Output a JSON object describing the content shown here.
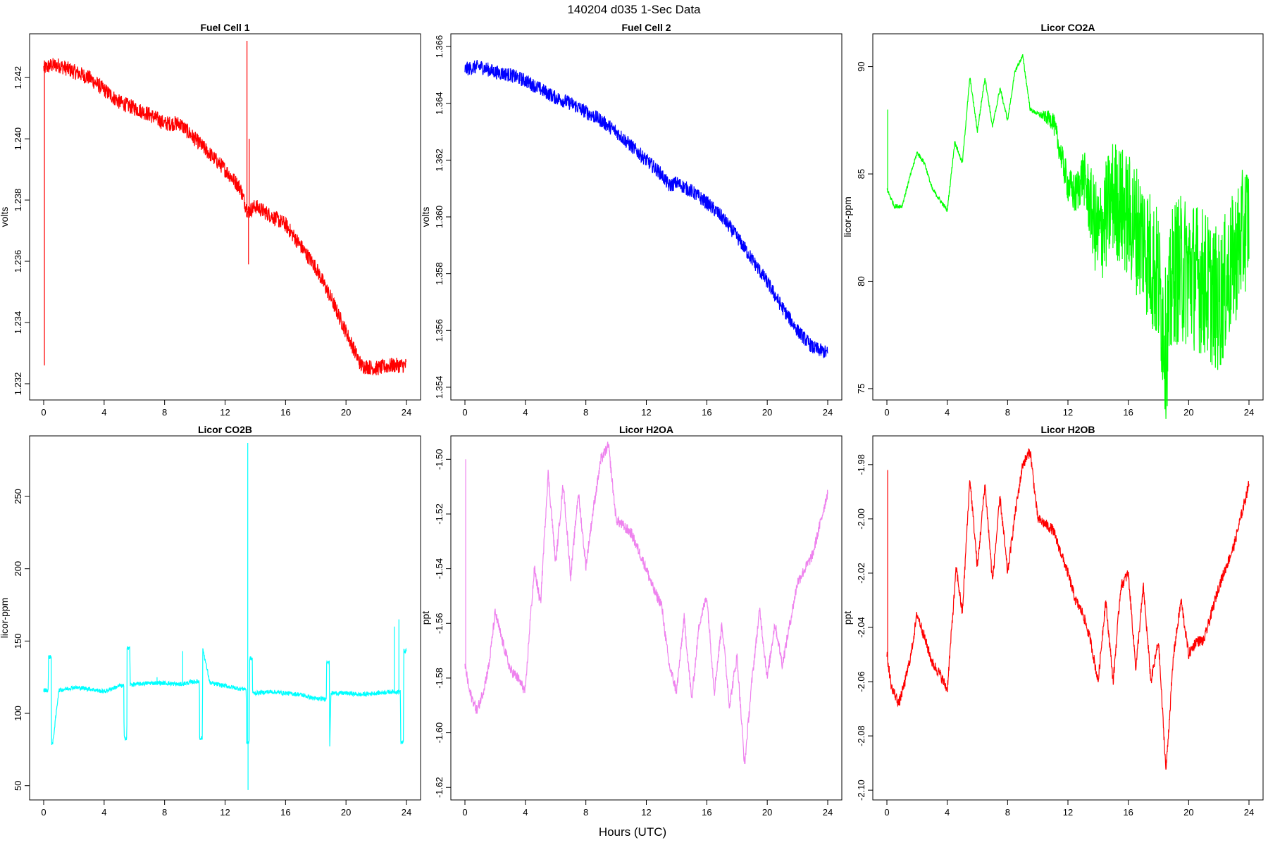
{
  "figure": {
    "title": "140204    d035    1-Sec Data",
    "xlabel": "Hours (UTC)"
  },
  "chart_data": [
    {
      "type": "line",
      "title": "Fuel Cell 1",
      "ylabel": "volts",
      "color": "#ff0000",
      "xlim": [
        0,
        24
      ],
      "ylim": [
        1.2317,
        1.2432
      ],
      "xticks": [
        0,
        4,
        8,
        12,
        16,
        20,
        24
      ],
      "yticks": [
        1.232,
        1.234,
        1.236,
        1.238,
        1.24,
        1.242
      ],
      "ytick_labels": [
        "1.232",
        "1.234",
        "1.236",
        "1.238",
        "1.240",
        "1.242"
      ],
      "noise": 0.00025,
      "x": [
        0,
        0.5,
        1,
        2,
        3,
        4,
        5,
        6,
        7,
        8,
        9,
        10,
        11,
        12,
        13,
        13.5,
        14,
        15,
        16,
        17,
        18,
        19,
        20,
        21,
        22,
        23,
        24
      ],
      "y": [
        1.2423,
        1.2424,
        1.2424,
        1.2422,
        1.242,
        1.2416,
        1.2412,
        1.241,
        1.2408,
        1.2405,
        1.2405,
        1.24,
        1.2395,
        1.239,
        1.2384,
        1.2376,
        1.2378,
        1.2375,
        1.2372,
        1.2365,
        1.2358,
        1.2348,
        1.2337,
        1.2326,
        1.2325,
        1.2326,
        1.2326
      ],
      "spikes": [
        [
          0.05,
          1.2326
        ],
        [
          13.45,
          1.2432
        ],
        [
          13.55,
          1.2359
        ],
        [
          13.6,
          1.24
        ]
      ]
    },
    {
      "type": "line",
      "title": "Fuel Cell 2",
      "ylabel": "volts",
      "color": "#0000ff",
      "xlim": [
        0,
        24
      ],
      "ylim": [
        1.3538,
        1.3662
      ],
      "xticks": [
        0,
        4,
        8,
        12,
        16,
        20,
        24
      ],
      "yticks": [
        1.354,
        1.356,
        1.358,
        1.36,
        1.362,
        1.364,
        1.366
      ],
      "ytick_labels": [
        "1.354",
        "1.356",
        "1.358",
        "1.360",
        "1.362",
        "1.364",
        "1.366"
      ],
      "noise": 0.00025,
      "x": [
        0,
        1,
        2,
        3,
        4,
        5,
        6,
        7,
        8,
        9,
        10,
        11,
        12,
        13,
        13.5,
        14,
        15,
        16,
        17,
        18,
        19,
        20,
        21,
        22,
        23,
        24
      ],
      "y": [
        1.3652,
        1.3653,
        1.3651,
        1.365,
        1.3648,
        1.3645,
        1.3642,
        1.364,
        1.3637,
        1.3634,
        1.363,
        1.3625,
        1.362,
        1.3615,
        1.3611,
        1.3612,
        1.3609,
        1.3605,
        1.36,
        1.3593,
        1.3585,
        1.3577,
        1.3568,
        1.356,
        1.3554,
        1.3552
      ]
    },
    {
      "type": "line",
      "title": "Licor CO2A",
      "ylabel": "licor-ppm",
      "color": "#00ff00",
      "xlim": [
        0,
        24
      ],
      "ylim": [
        74.8,
        91.2
      ],
      "xticks": [
        0,
        4,
        8,
        12,
        16,
        20,
        24
      ],
      "yticks": [
        75,
        80,
        85,
        90
      ],
      "ytick_labels": [
        "75",
        "80",
        "85",
        "90"
      ],
      "x": [
        0,
        0.5,
        1,
        1.5,
        2,
        2.5,
        3,
        3.5,
        4,
        4.5,
        5,
        5.5,
        6,
        6.5,
        7,
        7.5,
        8,
        8.5,
        9,
        9.5,
        10,
        11,
        12,
        12.5,
        13,
        14,
        15,
        16,
        17,
        18,
        18.5,
        19,
        20,
        21,
        22,
        23,
        24
      ],
      "y": [
        84.3,
        83.5,
        83.5,
        84.8,
        86.0,
        85.5,
        84.3,
        83.8,
        83.3,
        86.5,
        85.5,
        89.5,
        87.0,
        89.5,
        87.2,
        89.0,
        87.5,
        89.8,
        90.5,
        88.0,
        87.8,
        87.5,
        84.5,
        84.0,
        85.0,
        82.0,
        84.0,
        83.0,
        82.0,
        80.0,
        77.0,
        80.5,
        80.5,
        80.0,
        79.0,
        81.0,
        83.0
      ],
      "env_x": [
        0,
        10,
        13,
        14,
        16,
        18,
        20,
        22,
        24
      ],
      "env_w": [
        0.1,
        0.1,
        1.2,
        2.5,
        3.0,
        3.4,
        3.6,
        3.4,
        3.0
      ],
      "spikes": [
        [
          0.05,
          88.0
        ]
      ]
    },
    {
      "type": "line",
      "title": "Licor CO2B",
      "ylabel": "licor-ppm",
      "color": "#00ffff",
      "xlim": [
        0,
        24
      ],
      "ylim": [
        45,
        287
      ],
      "xticks": [
        0,
        4,
        8,
        12,
        16,
        20,
        24
      ],
      "yticks": [
        50,
        100,
        150,
        200,
        250
      ],
      "ytick_labels": [
        "50",
        "100",
        "150",
        "200",
        "250"
      ],
      "x": [
        0,
        0.3,
        0.32,
        0.5,
        0.52,
        0.6,
        1,
        2,
        3,
        4,
        5,
        5.3,
        5.32,
        5.5,
        5.52,
        5.7,
        5.72,
        6,
        7,
        8,
        9,
        10,
        10.3,
        10.32,
        10.5,
        10.52,
        11,
        12,
        13,
        13.4,
        13.42,
        13.6,
        13.62,
        13.8,
        13.82,
        14,
        15,
        16,
        17,
        18,
        18.7,
        18.72,
        18.9,
        18.92,
        19,
        20,
        21,
        22,
        23,
        23.6,
        23.62,
        23.8,
        23.82,
        24
      ],
      "y": [
        116,
        116,
        139,
        139,
        79,
        79,
        116,
        118,
        117,
        115,
        119,
        119,
        83,
        83,
        145,
        145,
        120,
        120,
        121,
        121,
        120,
        122,
        122,
        83,
        83,
        145,
        121,
        119,
        117,
        117,
        80,
        80,
        138,
        138,
        114,
        114,
        115,
        114,
        113,
        110,
        110,
        136,
        136,
        75,
        114,
        114,
        113,
        114,
        115,
        115,
        80,
        80,
        143,
        143
      ],
      "noise": 1.5,
      "spikes": [
        [
          13.5,
          287
        ],
        [
          13.52,
          47
        ],
        [
          23.2,
          160
        ],
        [
          23.5,
          165
        ],
        [
          9.2,
          143
        ],
        [
          7.5,
          125
        ]
      ]
    },
    {
      "type": "line",
      "title": "Licor H2OA",
      "ylabel": "ppt",
      "color": "#ee82ee",
      "xlim": [
        0,
        24
      ],
      "ylim": [
        -1.622,
        -1.494
      ],
      "xticks": [
        0,
        4,
        8,
        12,
        16,
        20,
        24
      ],
      "yticks": [
        -1.62,
        -1.6,
        -1.58,
        -1.56,
        -1.54,
        -1.52,
        -1.5
      ],
      "ytick_labels": [
        "-1.62",
        "-1.60",
        "-1.58",
        "-1.56",
        "-1.54",
        "-1.52",
        "-1.50"
      ],
      "x": [
        0,
        0.3,
        0.8,
        1.2,
        1.6,
        2,
        2.4,
        3,
        3.5,
        4,
        4.3,
        4.6,
        5,
        5.5,
        6,
        6.5,
        7,
        7.5,
        8,
        8.5,
        9,
        9.5,
        10,
        11,
        12,
        12.5,
        13,
        13.5,
        14,
        14.5,
        15,
        15.5,
        16,
        16.5,
        17,
        17.5,
        18,
        18.5,
        19,
        19.5,
        20,
        20.5,
        21,
        22,
        23,
        24
      ],
      "y": [
        -1.575,
        -1.585,
        -1.592,
        -1.585,
        -1.575,
        -1.556,
        -1.565,
        -1.577,
        -1.58,
        -1.585,
        -1.56,
        -1.54,
        -1.553,
        -1.505,
        -1.538,
        -1.509,
        -1.543,
        -1.512,
        -1.539,
        -1.518,
        -1.5,
        -1.495,
        -1.522,
        -1.527,
        -1.54,
        -1.548,
        -1.553,
        -1.575,
        -1.585,
        -1.558,
        -1.588,
        -1.56,
        -1.55,
        -1.585,
        -1.56,
        -1.59,
        -1.572,
        -1.612,
        -1.58,
        -1.555,
        -1.58,
        -1.56,
        -1.575,
        -1.545,
        -1.535,
        -1.512
      ],
      "noise": 0.002,
      "spikes": [
        [
          0.05,
          -1.5
        ]
      ]
    },
    {
      "type": "line",
      "title": "Licor H2OB",
      "ylabel": "ppt",
      "color": "#ff0000",
      "xlim": [
        0,
        24
      ],
      "ylim": [
        -2.101,
        -1.972
      ],
      "xticks": [
        0,
        4,
        8,
        12,
        16,
        20,
        24
      ],
      "yticks": [
        -2.1,
        -2.08,
        -2.06,
        -2.04,
        -2.02,
        -2,
        -1.98
      ],
      "ytick_labels": [
        "-2.10",
        "-2.08",
        "-2.06",
        "-2.04",
        "-2.02",
        "-2.00",
        "-1.98"
      ],
      "x": [
        0,
        0.3,
        0.8,
        1.2,
        1.6,
        2,
        2.4,
        3,
        3.5,
        4,
        4.3,
        4.6,
        5,
        5.5,
        6,
        6.5,
        7,
        7.5,
        8,
        8.5,
        9,
        9.5,
        10,
        11,
        12,
        12.5,
        13,
        13.5,
        14,
        14.5,
        15,
        15.5,
        16,
        16.5,
        17,
        17.5,
        18,
        18.5,
        19,
        19.5,
        20,
        20.5,
        21,
        22,
        23,
        24
      ],
      "y": [
        -2.05,
        -2.062,
        -2.068,
        -2.06,
        -2.05,
        -2.035,
        -2.042,
        -2.053,
        -2.057,
        -2.063,
        -2.04,
        -2.018,
        -2.035,
        -1.985,
        -2.018,
        -1.987,
        -2.023,
        -1.992,
        -2.02,
        -1.998,
        -1.98,
        -1.975,
        -2.0,
        -2.004,
        -2.02,
        -2.03,
        -2.035,
        -2.045,
        -2.06,
        -2.03,
        -2.06,
        -2.025,
        -2.02,
        -2.055,
        -2.025,
        -2.06,
        -2.045,
        -2.093,
        -2.05,
        -2.03,
        -2.05,
        -2.045,
        -2.045,
        -2.025,
        -2.01,
        -1.987
      ],
      "noise": 0.002,
      "spikes": [
        [
          0.05,
          -1.982
        ]
      ]
    }
  ]
}
